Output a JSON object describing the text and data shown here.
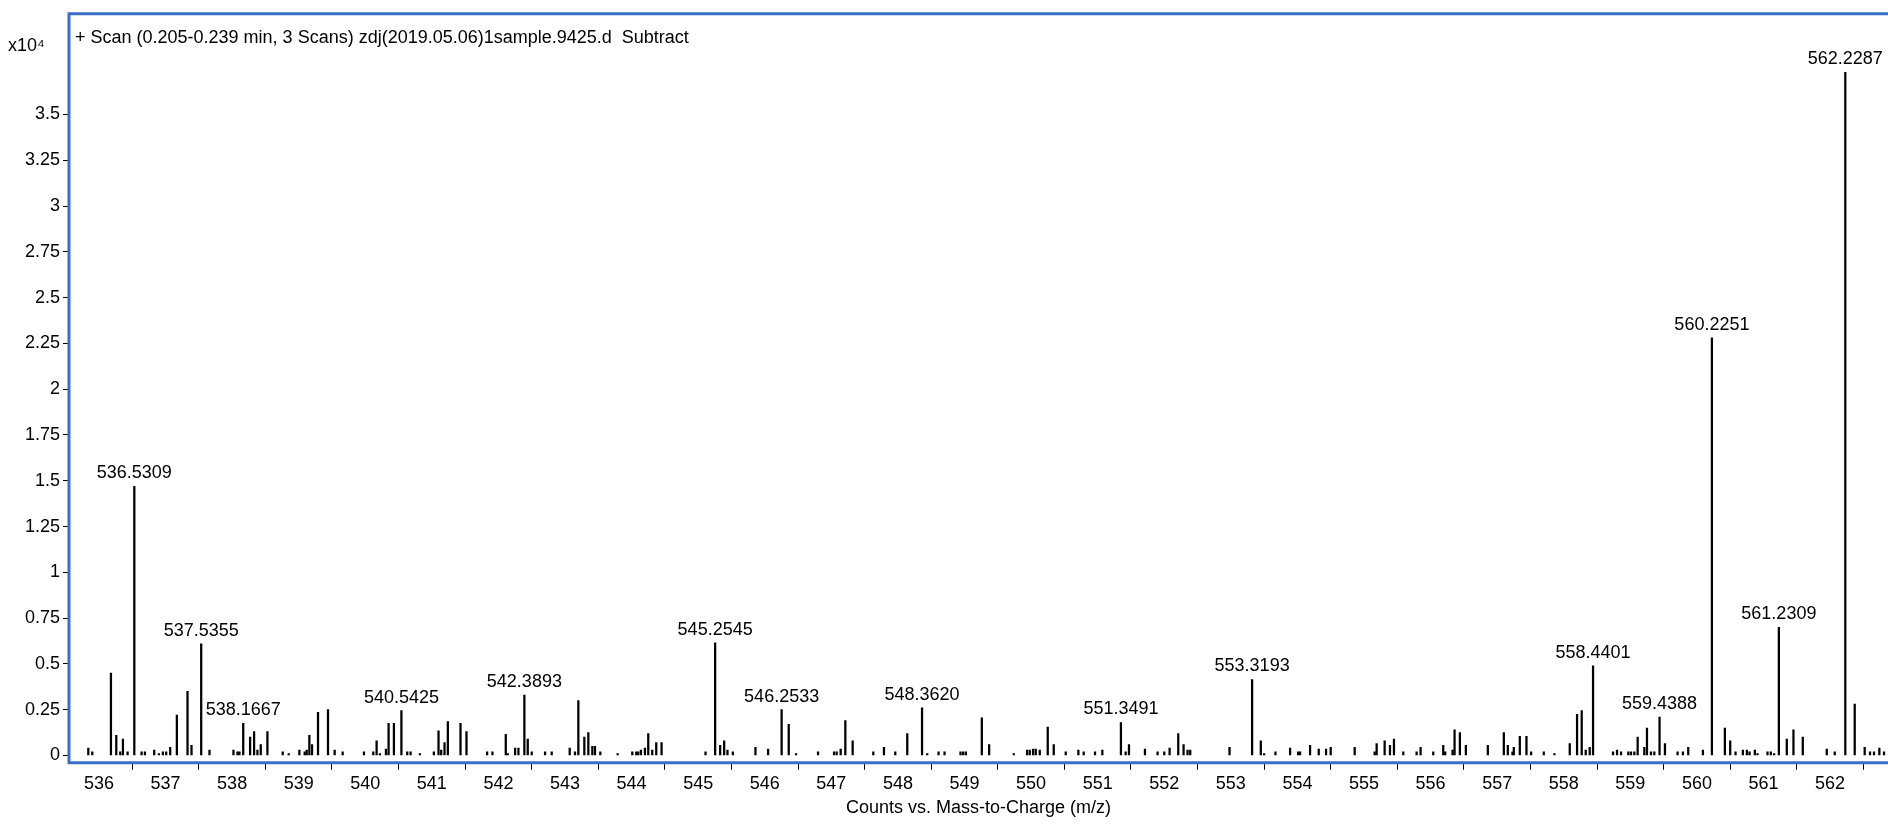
{
  "chart_data": {
    "type": "bar",
    "title": "+ Scan (0.205-0.239 min, 3 Scans) zdj(2019.05.06)1sample.9425.d  Subtract",
    "xlabel": "Counts vs. Mass-to-Charge (m/z)",
    "ylabel": "x10⁴",
    "xlim": [
      535.55,
      562.87
    ],
    "xticks": [
      536,
      537,
      538,
      539,
      540,
      541,
      542,
      543,
      544,
      545,
      546,
      547,
      548,
      549,
      550,
      551,
      552,
      553,
      554,
      555,
      556,
      557,
      558,
      559,
      560,
      561,
      562
    ],
    "ylim": [
      -0.04,
      4.05
    ],
    "yticks": [
      0,
      0.25,
      0.5,
      0.75,
      1,
      1.25,
      1.5,
      1.75,
      2,
      2.25,
      2.5,
      2.75,
      3,
      3.25,
      3.5
    ],
    "grid": false,
    "series": [
      {
        "color": "#000000",
        "x": [
          535.84,
          535.9,
          536.18,
          536.26,
          536.32,
          536.36,
          536.43,
          536.5309,
          536.64,
          536.69,
          536.83,
          536.9,
          536.96,
          537.01,
          537.07,
          537.17,
          537.33,
          537.39,
          537.5355,
          537.66,
          538.02,
          538.08,
          538.11,
          538.1667,
          538.27,
          538.33,
          538.38,
          538.43,
          538.53,
          538.76,
          538.85,
          539.01,
          539.09,
          539.12,
          539.16,
          539.2,
          539.29,
          539.44,
          539.54,
          539.66,
          539.98,
          540.12,
          540.17,
          540.22,
          540.31,
          540.35,
          540.43,
          540.5425,
          540.63,
          540.68,
          540.82,
          541.03,
          541.1,
          541.14,
          541.19,
          541.24,
          541.43,
          541.52,
          541.83,
          541.91,
          542.11,
          542.14,
          542.25,
          542.3,
          542.3893,
          542.44,
          542.5,
          542.7,
          542.8,
          543.07,
          543.15,
          543.2,
          543.29,
          543.35,
          543.41,
          543.45,
          543.53,
          543.79,
          544.01,
          544.07,
          544.1,
          544.14,
          544.2,
          544.25,
          544.31,
          544.37,
          544.45,
          545.11,
          545.2545,
          545.33,
          545.39,
          545.44,
          545.52,
          545.86,
          546.05,
          546.2533,
          546.36,
          546.47,
          546.8,
          547.04,
          547.08,
          547.14,
          547.21,
          547.32,
          547.63,
          547.79,
          547.96,
          548.14,
          548.362,
          548.44,
          548.61,
          548.7,
          548.94,
          548.98,
          549.02,
          549.26,
          549.37,
          549.74,
          549.94,
          549.98,
          550.03,
          550.07,
          550.13,
          550.25,
          550.34,
          550.52,
          550.71,
          550.79,
          550.96,
          551.07,
          551.3491,
          551.42,
          551.47,
          551.71,
          551.9,
          552.0,
          552.08,
          552.21,
          552.29,
          552.35,
          552.39,
          552.98,
          553.3193,
          553.45,
          553.5,
          553.67,
          553.89,
          554.01,
          554.04,
          554.19,
          554.32,
          554.43,
          554.5,
          554.86,
          555.16,
          555.19,
          555.31,
          555.39,
          555.45,
          555.59,
          555.79,
          555.85,
          556.04,
          556.19,
          556.22,
          556.33,
          556.36,
          556.44,
          556.53,
          556.86,
          557.1,
          557.16,
          557.23,
          557.25,
          557.34,
          557.44,
          557.51,
          557.7,
          557.86,
          558.09,
          558.2,
          558.27,
          558.33,
          558.39,
          558.4401,
          558.74,
          558.8,
          558.86,
          558.97,
          559.01,
          559.06,
          559.11,
          559.21,
          559.25,
          559.31,
          559.36,
          559.4388,
          559.52,
          559.71,
          559.79,
          559.87,
          560.09,
          560.2251,
          560.42,
          560.5,
          560.58,
          560.69,
          560.75,
          560.79,
          560.87,
          560.91,
          561.06,
          561.11,
          561.16,
          561.2309,
          561.35,
          561.45,
          561.59,
          561.95,
          562.07,
          562.2287,
          562.37,
          562.52,
          562.6,
          562.66,
          562.74,
          562.81
        ],
        "values": [
          0.04,
          0.02,
          0.45,
          0.11,
          0.02,
          0.09,
          0.02,
          1.47,
          0.02,
          0.02,
          0.03,
          0.01,
          0.02,
          0.02,
          0.045,
          0.22,
          0.35,
          0.055,
          0.61,
          0.03,
          0.03,
          0.02,
          0.02,
          0.175,
          0.1,
          0.13,
          0.03,
          0.06,
          0.13,
          0.02,
          0.01,
          0.03,
          0.02,
          0.03,
          0.11,
          0.06,
          0.235,
          0.25,
          0.03,
          0.02,
          0.02,
          0.02,
          0.08,
          0.01,
          0.035,
          0.175,
          0.175,
          0.245,
          0.02,
          0.02,
          0.01,
          0.02,
          0.135,
          0.03,
          0.07,
          0.185,
          0.175,
          0.13,
          0.02,
          0.02,
          0.115,
          0.01,
          0.04,
          0.04,
          0.33,
          0.09,
          0.02,
          0.02,
          0.02,
          0.04,
          0.02,
          0.3,
          0.1,
          0.125,
          0.05,
          0.05,
          0.02,
          0.01,
          0.02,
          0.02,
          0.02,
          0.03,
          0.04,
          0.12,
          0.03,
          0.07,
          0.07,
          0.02,
          0.615,
          0.055,
          0.08,
          0.03,
          0.02,
          0.045,
          0.035,
          0.25,
          0.17,
          0.01,
          0.02,
          0.02,
          0.02,
          0.035,
          0.19,
          0.08,
          0.02,
          0.045,
          0.02,
          0.12,
          0.26,
          0.01,
          0.02,
          0.02,
          0.02,
          0.02,
          0.02,
          0.205,
          0.06,
          0.01,
          0.03,
          0.03,
          0.035,
          0.035,
          0.03,
          0.155,
          0.06,
          0.02,
          0.03,
          0.02,
          0.02,
          0.03,
          0.18,
          0.02,
          0.06,
          0.035,
          0.02,
          0.02,
          0.04,
          0.12,
          0.06,
          0.03,
          0.03,
          0.045,
          0.415,
          0.08,
          0.01,
          0.02,
          0.04,
          0.02,
          0.02,
          0.055,
          0.035,
          0.035,
          0.045,
          0.045,
          0.02,
          0.065,
          0.08,
          0.055,
          0.09,
          0.02,
          0.02,
          0.045,
          0.02,
          0.055,
          0.02,
          0.03,
          0.14,
          0.125,
          0.055,
          0.055,
          0.125,
          0.055,
          0.02,
          0.045,
          0.105,
          0.105,
          0.02,
          0.02,
          0.01,
          0.065,
          0.225,
          0.245,
          0.03,
          0.045,
          0.49,
          0.02,
          0.03,
          0.02,
          0.02,
          0.02,
          0.02,
          0.1,
          0.045,
          0.15,
          0.02,
          0.02,
          0.21,
          0.065,
          0.02,
          0.02,
          0.045,
          0.03,
          2.28,
          0.15,
          0.08,
          0.02,
          0.03,
          0.03,
          0.02,
          0.03,
          0.01,
          0.02,
          0.02,
          0.01,
          0.7,
          0.09,
          0.14,
          0.1,
          0.035,
          0.02,
          3.73,
          0.28,
          0.045,
          0.02,
          0.02,
          0.04,
          0.02
        ]
      }
    ],
    "annotations": [
      {
        "text": "536.5309",
        "x": 536.5309,
        "y": 1.47
      },
      {
        "text": "537.5355",
        "x": 537.5355,
        "y": 0.61
      },
      {
        "text": "538.1667",
        "x": 538.1667,
        "y": 0.175
      },
      {
        "text": "540.5425",
        "x": 540.5425,
        "y": 0.245
      },
      {
        "text": "542.3893",
        "x": 542.3893,
        "y": 0.33
      },
      {
        "text": "545.2545",
        "x": 545.2545,
        "y": 0.615
      },
      {
        "text": "546.2533",
        "x": 546.2533,
        "y": 0.25
      },
      {
        "text": "548.3620",
        "x": 548.362,
        "y": 0.26
      },
      {
        "text": "551.3491",
        "x": 551.3491,
        "y": 0.18
      },
      {
        "text": "553.3193",
        "x": 553.3193,
        "y": 0.415
      },
      {
        "text": "558.4401",
        "x": 558.4401,
        "y": 0.49
      },
      {
        "text": "559.4388",
        "x": 559.4388,
        "y": 0.21
      },
      {
        "text": "560.2251",
        "x": 560.2251,
        "y": 2.28
      },
      {
        "text": "561.2309",
        "x": 561.2309,
        "y": 0.7
      },
      {
        "text": "562.2287",
        "x": 562.2287,
        "y": 3.73
      }
    ]
  }
}
